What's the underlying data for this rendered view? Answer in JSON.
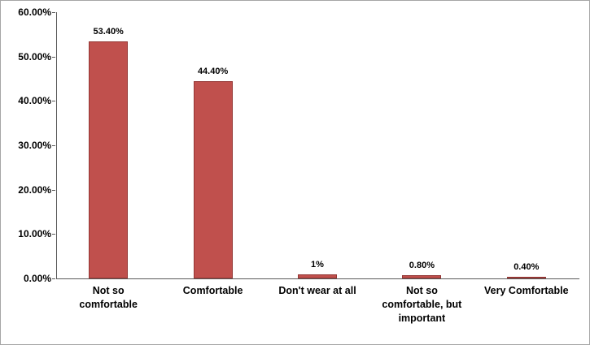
{
  "chart_data": {
    "type": "bar",
    "title": "",
    "xlabel": "",
    "ylabel": "",
    "categories": [
      "Not so comfortable",
      "Comfortable",
      "Don't wear at all",
      "Not so comfortable, but important",
      "Very Comfortable"
    ],
    "values": [
      53.4,
      44.4,
      1,
      0.8,
      0.4
    ],
    "data_labels": [
      "53.40%",
      "44.40%",
      "1%",
      "0.80%",
      "0.40%"
    ],
    "ylim": [
      0,
      60
    ],
    "y_tick_step": 10,
    "y_tick_labels": [
      "0.00%",
      "10.00%",
      "20.00%",
      "30.00%",
      "40.00%",
      "50.00%",
      "60.00%"
    ],
    "grid": false,
    "legend": false,
    "colors": {
      "bar_fill": "#c0504d",
      "bar_border": "#943634",
      "axis": "#595959",
      "chart_border": "#a6a6a6",
      "background": "#ffffff",
      "label_text": "#000000"
    }
  }
}
